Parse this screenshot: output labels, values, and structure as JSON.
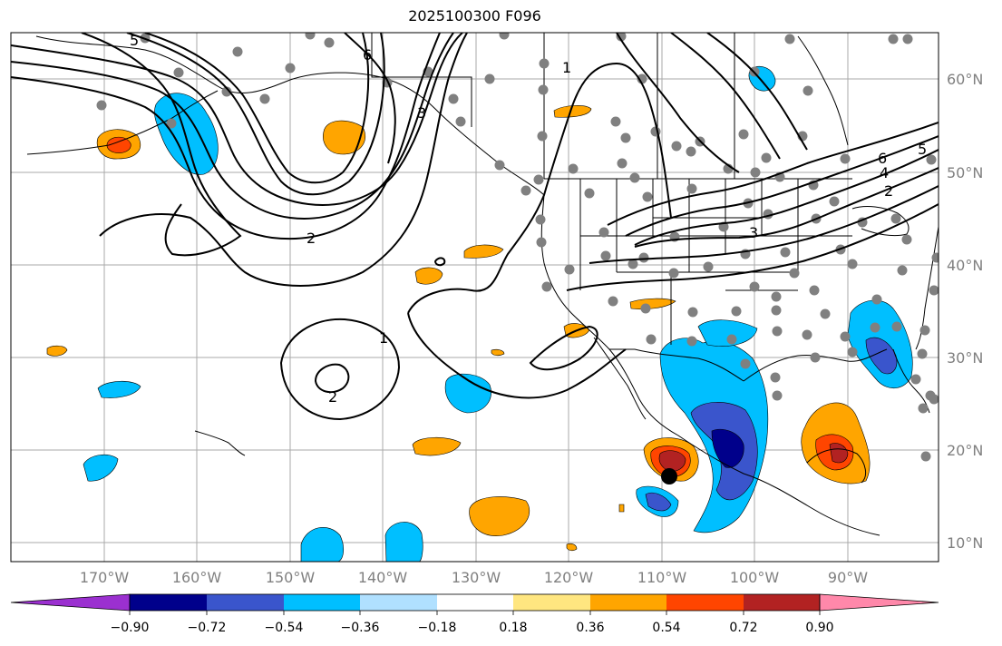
{
  "title": "2025100300 F096",
  "lat_labels": [
    "60°N",
    "50°N",
    "40°N",
    "30°N",
    "20°N",
    "10°N"
  ],
  "lon_labels": [
    "170°W",
    "160°W",
    "150°W",
    "140°W",
    "130°W",
    "120°W",
    "110°W",
    "100°W",
    "90°W"
  ],
  "colorbar": {
    "ticks": [
      "−0.90",
      "−0.72",
      "−0.54",
      "−0.36",
      "−0.18",
      "0.18",
      "0.36",
      "0.54",
      "0.72",
      "0.90"
    ],
    "colors": [
      "#9b30d0",
      "#00008b",
      "#3a55cc",
      "#00bfff",
      "#b0e0ff",
      "#ffffff",
      "#ffe680",
      "#ffa500",
      "#ff4500",
      "#b22222",
      "#ff88aa"
    ]
  },
  "contour_labels": [
    "6",
    "5",
    "3",
    "1",
    "2",
    "2",
    "1",
    "2",
    "3",
    "6",
    "4",
    "2",
    "3",
    "5"
  ],
  "colors": {
    "positive_light": "#ffa500",
    "positive_dark": "#ff4500",
    "positive_max": "#b22222",
    "negative_light": "#00bfff",
    "negative_dark": "#3a55cc",
    "negative_max": "#00008b",
    "station": "#808080",
    "grid": "#a9a9a9"
  }
}
